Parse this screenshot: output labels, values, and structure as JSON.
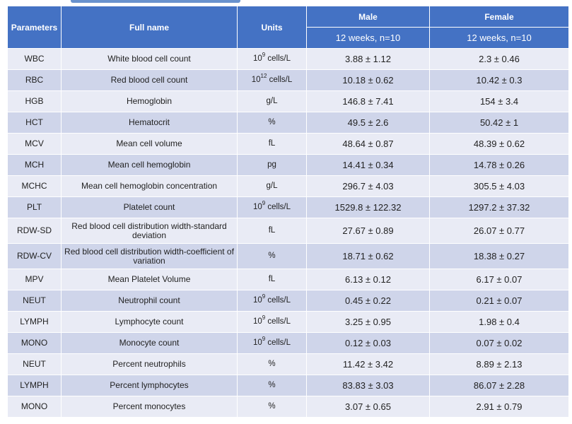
{
  "header": {
    "parameters": "Parameters",
    "full_name": "Full name",
    "units": "Units",
    "male": "Male",
    "female": "Female",
    "male_sub": "12 weeks, n=10",
    "female_sub": "12 weeks, n=10"
  },
  "rows": [
    {
      "param": "WBC",
      "name": "White blood cell count",
      "unit_base": "10",
      "unit_exp": "9",
      "unit_rest": " cells/L",
      "male": "3.88 ± 1.12",
      "female": "2.3 ± 0.46"
    },
    {
      "param": "RBC",
      "name": "Red blood cell count",
      "unit_base": "10",
      "unit_exp": "12",
      "unit_rest": " cells/L",
      "male": "10.18 ± 0.62",
      "female": "10.42 ± 0.3"
    },
    {
      "param": "HGB",
      "name": "Hemoglobin",
      "unit": "g/L",
      "male": "146.8 ± 7.41",
      "female": "154 ± 3.4"
    },
    {
      "param": "HCT",
      "name": "Hematocrit",
      "unit": "%",
      "male": "49.5 ± 2.6",
      "female": "50.42 ± 1"
    },
    {
      "param": "MCV",
      "name": "Mean cell volume",
      "unit": "fL",
      "male": "48.64 ± 0.87",
      "female": "48.39 ± 0.62"
    },
    {
      "param": "MCH",
      "name": "Mean cell hemoglobin",
      "unit": "pg",
      "male": "14.41 ± 0.34",
      "female": "14.78 ± 0.26"
    },
    {
      "param": "MCHC",
      "name": "Mean cell hemoglobin concentration",
      "unit": "g/L",
      "male": "296.7 ± 4.03",
      "female": "305.5 ± 4.03"
    },
    {
      "param": "PLT",
      "name": "Platelet count",
      "unit_base": "10",
      "unit_exp": "9",
      "unit_rest": " cells/L",
      "male": "1529.8 ± 122.32",
      "female": "1297.2 ± 37.32"
    },
    {
      "param": "RDW-SD",
      "name": "Red blood cell distribution width-standard deviation",
      "unit": "fL",
      "male": "27.67 ± 0.89",
      "female": "26.07 ± 0.77"
    },
    {
      "param": "RDW-CV",
      "name": "Red blood cell distribution width-coefficient of variation",
      "unit": "%",
      "male": "18.71 ± 0.62",
      "female": "18.38 ± 0.27"
    },
    {
      "param": "MPV",
      "name": "Mean Platelet Volume",
      "unit": "fL",
      "male": "6.13 ± 0.12",
      "female": "6.17 ± 0.07"
    },
    {
      "param": "NEUT",
      "name": "Neutrophil count",
      "unit_base": "10",
      "unit_exp": "9",
      "unit_rest": " cells/L",
      "male": "0.45 ± 0.22",
      "female": "0.21 ± 0.07"
    },
    {
      "param": "LYMPH",
      "name": "Lymphocyte count",
      "unit_base": "10",
      "unit_exp": "9",
      "unit_rest": " cells/L",
      "male": "3.25 ± 0.95",
      "female": "1.98 ± 0.4"
    },
    {
      "param": "MONO",
      "name": "Monocyte count",
      "unit_base": "10",
      "unit_exp": "9",
      "unit_rest": " cells/L",
      "male": "0.12 ± 0.03",
      "female": "0.07 ± 0.02"
    },
    {
      "param": "NEUT",
      "name": "Percent neutrophils",
      "unit": "%",
      "male": "11.42 ± 3.42",
      "female": "8.89 ± 2.13"
    },
    {
      "param": "LYMPH",
      "name": "Percent lymphocytes",
      "unit": "%",
      "male": "83.83 ± 3.03",
      "female": "86.07 ± 2.28"
    },
    {
      "param": "MONO",
      "name": "Percent monocytes",
      "unit": "%",
      "male": "3.07 ± 0.65",
      "female": "2.91 ± 0.79"
    }
  ]
}
